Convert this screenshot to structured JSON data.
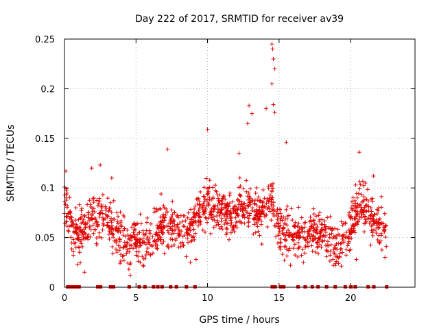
{
  "chart_data": {
    "type": "scatter",
    "title": "Day 222 of 2017, SRMTID for receiver av39",
    "xlabel": "GPS time / hours",
    "ylabel": "SRMTID / TECUs",
    "xlim": [
      0,
      24.5
    ],
    "ylim": [
      0,
      0.25
    ],
    "x_ticks": [
      0,
      5,
      10,
      15,
      20
    ],
    "x_tick_labels": [
      "0",
      "5",
      "10",
      "15",
      "20"
    ],
    "y_ticks": [
      0,
      0.05,
      0.1,
      0.15,
      0.2,
      0.25
    ],
    "y_tick_labels": [
      "0",
      "0.05",
      "0.1",
      "0.15",
      "0.2",
      "0.25"
    ],
    "grid": true,
    "marker": "+",
    "color": "#e00000",
    "trend": [
      [
        0.0,
        0.088
      ],
      [
        0.3,
        0.075
      ],
      [
        0.6,
        0.055
      ],
      [
        1.0,
        0.05
      ],
      [
        1.5,
        0.06
      ],
      [
        2.0,
        0.07
      ],
      [
        2.5,
        0.068
      ],
      [
        3.0,
        0.072
      ],
      [
        3.5,
        0.055
      ],
      [
        4.0,
        0.05
      ],
      [
        4.5,
        0.046
      ],
      [
        5.0,
        0.05
      ],
      [
        5.5,
        0.045
      ],
      [
        6.0,
        0.05
      ],
      [
        6.5,
        0.055
      ],
      [
        7.0,
        0.065
      ],
      [
        7.5,
        0.06
      ],
      [
        8.0,
        0.06
      ],
      [
        8.5,
        0.058
      ],
      [
        9.0,
        0.065
      ],
      [
        9.5,
        0.075
      ],
      [
        10.0,
        0.085
      ],
      [
        10.5,
        0.078
      ],
      [
        11.0,
        0.08
      ],
      [
        11.5,
        0.07
      ],
      [
        12.0,
        0.075
      ],
      [
        12.5,
        0.085
      ],
      [
        13.0,
        0.078
      ],
      [
        13.5,
        0.07
      ],
      [
        14.0,
        0.082
      ],
      [
        14.5,
        0.09
      ],
      [
        15.0,
        0.06
      ],
      [
        15.5,
        0.058
      ],
      [
        16.0,
        0.055
      ],
      [
        16.5,
        0.05
      ],
      [
        17.0,
        0.05
      ],
      [
        17.5,
        0.055
      ],
      [
        18.0,
        0.055
      ],
      [
        18.5,
        0.048
      ],
      [
        19.0,
        0.045
      ],
      [
        19.5,
        0.05
      ],
      [
        20.0,
        0.058
      ],
      [
        20.5,
        0.085
      ],
      [
        21.0,
        0.078
      ],
      [
        21.5,
        0.075
      ],
      [
        22.0,
        0.065
      ],
      [
        22.5,
        0.055
      ]
    ],
    "peaks": [
      [
        0.1,
        0.117
      ],
      [
        1.9,
        0.12
      ],
      [
        2.5,
        0.123
      ],
      [
        3.3,
        0.11
      ],
      [
        7.2,
        0.139
      ],
      [
        10.0,
        0.159
      ],
      [
        12.2,
        0.135
      ],
      [
        12.8,
        0.165
      ],
      [
        12.9,
        0.183
      ],
      [
        13.1,
        0.175
      ],
      [
        14.1,
        0.18
      ],
      [
        14.5,
        0.245
      ],
      [
        14.55,
        0.24
      ],
      [
        14.6,
        0.23
      ],
      [
        14.7,
        0.22
      ],
      [
        14.5,
        0.205
      ],
      [
        14.6,
        0.184
      ],
      [
        14.7,
        0.176
      ],
      [
        15.5,
        0.146
      ],
      [
        20.6,
        0.136
      ],
      [
        21.6,
        0.112
      ]
    ],
    "lows": [
      [
        1.4,
        0.015
      ],
      [
        4.5,
        0.018
      ],
      [
        4.6,
        0.012
      ],
      [
        5.3,
        0.025
      ],
      [
        5.5,
        0.022
      ],
      [
        8.8,
        0.025
      ],
      [
        9.2,
        0.028
      ],
      [
        15.8,
        0.022
      ],
      [
        16.7,
        0.025
      ],
      [
        18.8,
        0.022
      ],
      [
        20.4,
        0.028
      ],
      [
        22.4,
        0.03
      ]
    ],
    "zero_markers": [
      0.2,
      0.4,
      0.6,
      0.8,
      1.0,
      2.3,
      2.5,
      3.2,
      3.4,
      4.5,
      5.2,
      5.6,
      6.2,
      6.5,
      6.8,
      7.4,
      7.8,
      8.5,
      9.1,
      14.5,
      14.7,
      15.1,
      15.3,
      16.3,
      16.8,
      17.3,
      17.7,
      18.3,
      18.9,
      19.6,
      20.0,
      20.3,
      21.2,
      21.6,
      22.5
    ],
    "scatter_density": 65,
    "noise_amplitude": 0.022
  }
}
